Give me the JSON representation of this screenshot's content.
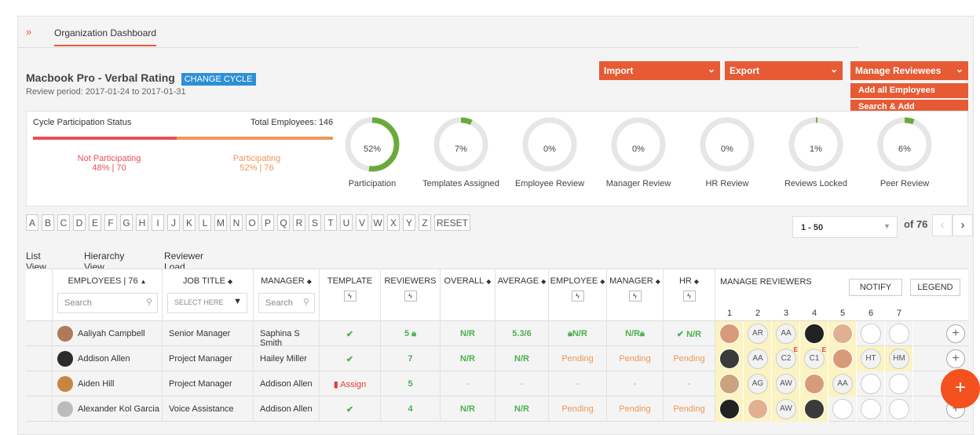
{
  "breadcrumb": {
    "title": "Organization Dashboard"
  },
  "cycle": {
    "name": "Macbook Pro - Verbal Rating",
    "change_label": "CHANGE CYCLE",
    "period": "Review period: 2017-01-24 to 2017-01-31"
  },
  "actions": {
    "import": "Import",
    "export": "Export",
    "manage": "Manage Reviewees",
    "menu": [
      "Add all Employees",
      "Search & Add Employees"
    ]
  },
  "participation": {
    "label": "Cycle Participation Status",
    "total": "Total Employees: 146",
    "not_label": "Not Participating",
    "not_value": "48% | 70",
    "not_fraction": 0.48,
    "yes_label": "Participating",
    "yes_value": "52% | 76"
  },
  "rings": [
    {
      "value": "52%",
      "pct": 52,
      "label": "Participation"
    },
    {
      "value": "7%",
      "pct": 7,
      "label": "Templates Assigned"
    },
    {
      "value": "0%",
      "pct": 0,
      "label": "Employee Review"
    },
    {
      "value": "0%",
      "pct": 0,
      "label": "Manager Review"
    },
    {
      "value": "0%",
      "pct": 0,
      "label": "HR Review"
    },
    {
      "value": "1%",
      "pct": 1,
      "label": "Reviews Locked"
    },
    {
      "value": "6%",
      "pct": 6,
      "label": "Peer Review"
    }
  ],
  "alphabet": [
    "A",
    "B",
    "C",
    "D",
    "E",
    "F",
    "G",
    "H",
    "I",
    "J",
    "K",
    "L",
    "M",
    "N",
    "O",
    "P",
    "Q",
    "R",
    "S",
    "T",
    "U",
    "V",
    "W",
    "X",
    "Y",
    "Z",
    "RESET"
  ],
  "pager": {
    "range": "1 - 50",
    "of": "of 76"
  },
  "tabs": [
    "List View",
    "Hierarchy View",
    "Reviewer Load"
  ],
  "columns": {
    "employees": "EMPLOYEES | 76",
    "job": "JOB TITLE",
    "manager": "MANAGER",
    "template": "TEMPLATE",
    "reviewers": "REVIEWERS",
    "overall": "OVERALL",
    "average": "AVERAGE",
    "employee": "EMPLOYEE",
    "mgr": "MANAGER",
    "hr": "HR",
    "manage": "MANAGE REVIEWERS",
    "notify": "NOTIFY",
    "legend": "LEGEND",
    "search_ph": "Search",
    "select_ph": "SELECT HERE",
    "nums": [
      "1",
      "2",
      "3",
      "4",
      "5",
      "6",
      "7"
    ]
  },
  "rows": [
    {
      "name": "Aaliyah Campbell",
      "job": "Senior Manager",
      "manager": "Saphina S Smith",
      "template": "✔",
      "reviewers": "5",
      "overall": "N/R",
      "average": "5.3/6",
      "employee": "N/R",
      "mgr": "N/R",
      "hr": "✔ N/R",
      "rv": [
        "",
        "AR",
        "AA",
        "",
        "",
        "",
        ""
      ]
    },
    {
      "name": "Addison Allen",
      "job": "Project Manager",
      "manager": "Hailey Miller",
      "template": "✔",
      "reviewers": "7",
      "overall": "N/R",
      "average": "N/R",
      "employee": "Pending",
      "mgr": "Pending",
      "hr": "Pending",
      "rv": [
        "",
        "AA",
        "C2",
        "C1",
        "",
        "HT",
        "HM"
      ]
    },
    {
      "name": "Aiden Hill",
      "job": "Project Manager",
      "manager": "Addison Allen",
      "template": "Assign",
      "reviewers": "5",
      "overall": "-",
      "average": "-",
      "employee": "-",
      "mgr": "-",
      "hr": "-",
      "rv": [
        "",
        "AG",
        "AW",
        "",
        "AA",
        "",
        ""
      ]
    },
    {
      "name": "Alexander Kol Garcia",
      "job": "Voice Assistance",
      "manager": "Addison Allen",
      "template": "✔",
      "reviewers": "4",
      "overall": "N/R",
      "average": "N/R",
      "employee": "Pending",
      "mgr": "Pending",
      "hr": "Pending",
      "rv": [
        "",
        "",
        "AW",
        "",
        "",
        "",
        ""
      ]
    }
  ],
  "colors": {
    "accent": "#e65a34",
    "green": "#4caf50",
    "ring_bg": "#e6e6e6",
    "reviewer_bg": "#fbf3c1"
  }
}
